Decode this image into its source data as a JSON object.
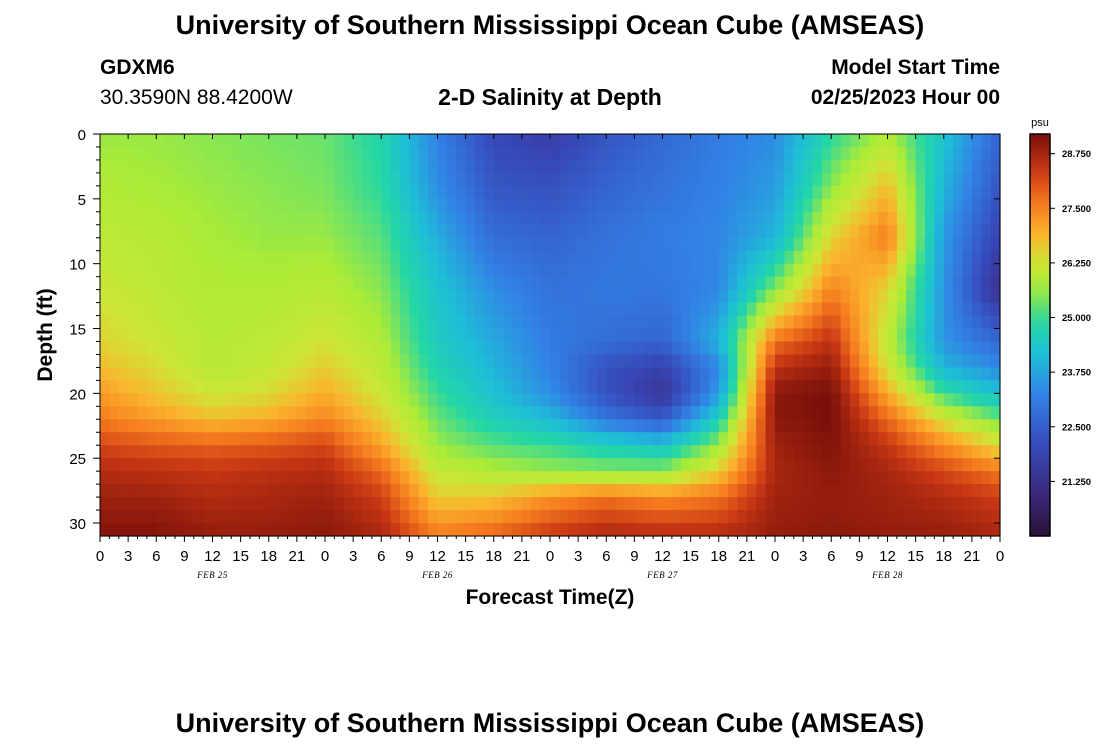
{
  "header": {
    "title_top": "University of Southern Mississippi Ocean Cube (AMSEAS)",
    "title_bottom": "University of Southern Mississippi Ocean Cube (AMSEAS)",
    "station_name": "GDXM6",
    "station_coords": "30.3590N  88.4200W",
    "plot_title": "2-D Salinity at Depth",
    "model_start_label": "Model Start Time",
    "model_start_value": "02/25/2023 Hour 00"
  },
  "chart_data": {
    "type": "heatmap",
    "title": "2-D Salinity at Depth",
    "xlabel": "Forecast Time(Z)",
    "ylabel": "Depth (ft)",
    "x_range_hours": [
      0,
      96
    ],
    "y_range_ft": [
      0,
      31
    ],
    "x_tick_labels": [
      "0",
      "3",
      "6",
      "9",
      "12",
      "15",
      "18",
      "21",
      "0",
      "3",
      "6",
      "9",
      "12",
      "15",
      "18",
      "21",
      "0",
      "3",
      "6",
      "9",
      "12",
      "15",
      "18",
      "21",
      "0",
      "3",
      "6",
      "9",
      "12",
      "15",
      "18",
      "21",
      "0"
    ],
    "x_date_labels": [
      {
        "label": "FEB 25",
        "hour": 12
      },
      {
        "label": "FEB 26",
        "hour": 36
      },
      {
        "label": "FEB 27",
        "hour": 60
      },
      {
        "label": "FEB 28",
        "hour": 84
      }
    ],
    "y_ticks": [
      0,
      5,
      10,
      15,
      20,
      25,
      30
    ],
    "colorbar": {
      "unit": "psu",
      "min": 20.0,
      "max": 29.2,
      "tick_labels": [
        "28.750",
        "27.500",
        "26.250",
        "25.000",
        "23.750",
        "22.500",
        "21.250"
      ],
      "tick_values": [
        28.75,
        27.5,
        26.25,
        25.0,
        23.75,
        22.5,
        21.25
      ]
    },
    "grid_x_hours": [
      0,
      6,
      12,
      18,
      24,
      30,
      36,
      42,
      48,
      54,
      60,
      66,
      72,
      78,
      84,
      90,
      96
    ],
    "grid_y_ft": [
      0,
      4,
      8,
      12,
      16,
      18,
      20,
      22,
      24,
      26,
      28,
      31
    ],
    "salinity": [
      [
        25.6,
        25.6,
        25.5,
        25.4,
        25.3,
        24.8,
        23.2,
        22.0,
        21.7,
        22.3,
        22.7,
        23.1,
        23.4,
        24.9,
        25.8,
        24.3,
        22.6
      ],
      [
        25.8,
        25.7,
        25.6,
        25.5,
        25.4,
        24.9,
        23.4,
        22.3,
        22.2,
        22.6,
        22.9,
        23.2,
        23.6,
        25.5,
        26.8,
        24.0,
        22.3
      ],
      [
        26.0,
        25.9,
        25.7,
        25.6,
        25.6,
        25.2,
        23.9,
        22.8,
        22.6,
        22.9,
        23.1,
        23.3,
        24.0,
        26.5,
        27.6,
        23.6,
        21.8
      ],
      [
        26.2,
        26.0,
        25.8,
        25.8,
        25.9,
        25.5,
        24.3,
        23.4,
        22.9,
        23.0,
        23.0,
        23.3,
        25.5,
        27.5,
        26.5,
        23.5,
        21.2
      ],
      [
        26.5,
        26.2,
        25.9,
        26.0,
        26.3,
        25.8,
        24.5,
        23.8,
        23.1,
        22.8,
        22.6,
        24.0,
        27.7,
        28.5,
        26.0,
        23.5,
        22.7
      ],
      [
        26.8,
        26.4,
        25.9,
        26.1,
        26.6,
        26.0,
        24.7,
        24.0,
        23.2,
        22.2,
        21.8,
        23.3,
        28.5,
        28.9,
        26.3,
        24.0,
        23.3
      ],
      [
        27.2,
        26.7,
        26.2,
        26.4,
        27.0,
        26.2,
        25.0,
        24.2,
        23.4,
        22.2,
        21.4,
        23.6,
        29.0,
        29.2,
        27.0,
        25.0,
        24.2
      ],
      [
        27.6,
        27.2,
        26.8,
        27.0,
        27.5,
        26.6,
        25.3,
        24.6,
        24.1,
        23.0,
        22.4,
        24.6,
        29.0,
        29.2,
        27.8,
        26.3,
        25.3
      ],
      [
        28.2,
        28.0,
        27.9,
        28.0,
        28.2,
        27.1,
        25.6,
        25.2,
        25.0,
        24.6,
        24.3,
        25.6,
        28.8,
        29.1,
        28.4,
        27.4,
        26.4
      ],
      [
        28.6,
        28.5,
        28.4,
        28.5,
        28.6,
        27.8,
        26.1,
        25.8,
        25.6,
        25.5,
        25.5,
        26.6,
        28.7,
        29.0,
        28.7,
        28.2,
        27.6
      ],
      [
        28.8,
        28.8,
        28.6,
        28.7,
        28.8,
        28.3,
        26.6,
        26.7,
        27.3,
        27.7,
        27.4,
        27.7,
        28.8,
        28.9,
        28.8,
        28.6,
        28.3
      ],
      [
        29.1,
        29.1,
        28.9,
        28.9,
        29.0,
        28.7,
        27.6,
        27.9,
        28.4,
        28.7,
        28.6,
        28.6,
        28.9,
        29.0,
        28.9,
        28.9,
        28.7
      ]
    ]
  }
}
